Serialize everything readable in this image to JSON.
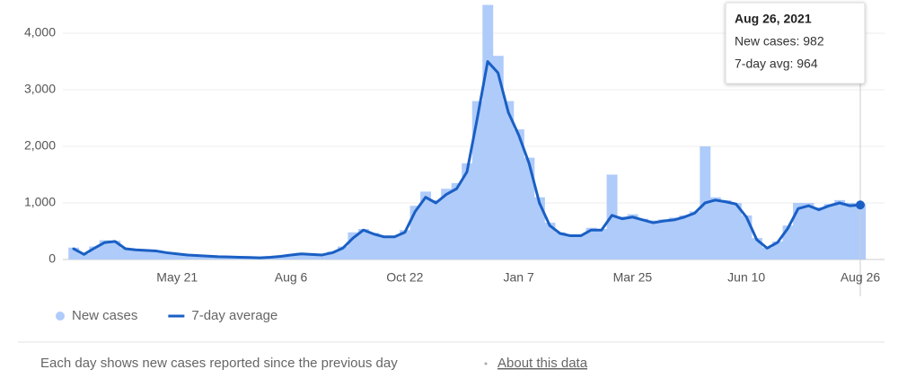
{
  "chart_data": {
    "type": "bar-line",
    "categories": [
      null,
      null,
      null,
      null,
      null,
      null,
      null,
      null,
      null,
      null,
      "May 21",
      null,
      null,
      null,
      null,
      null,
      null,
      null,
      null,
      null,
      null,
      "Aug 6",
      null,
      null,
      null,
      null,
      null,
      null,
      null,
      null,
      null,
      null,
      "Oct 22",
      null,
      null,
      null,
      null,
      null,
      null,
      null,
      null,
      null,
      null,
      "Jan 7",
      null,
      null,
      null,
      null,
      null,
      null,
      null,
      null,
      null,
      null,
      "Mar 25",
      null,
      null,
      null,
      null,
      null,
      null,
      null,
      null,
      null,
      null,
      "Jun 10",
      null,
      null,
      null,
      null,
      null,
      null,
      null,
      null,
      null,
      null,
      "Aug 26"
    ],
    "series": [
      {
        "name": "New cases",
        "kind": "bar",
        "color": "#aecbfa",
        "values": [
          210,
          100,
          230,
          340,
          330,
          200,
          180,
          170,
          160,
          130,
          110,
          90,
          75,
          65,
          55,
          50,
          45,
          40,
          35,
          45,
          60,
          90,
          120,
          95,
          85,
          140,
          230,
          480,
          540,
          470,
          420,
          410,
          520,
          950,
          1200,
          1050,
          1250,
          1350,
          1700,
          2800,
          4500,
          3600,
          2800,
          2300,
          1800,
          1100,
          650,
          480,
          430,
          440,
          560,
          540,
          1500,
          760,
          800,
          720,
          690,
          710,
          740,
          780,
          850,
          2000,
          1100,
          1050,
          1000,
          780,
          380,
          210,
          320,
          600,
          1000,
          1000,
          920,
          980,
          1050,
          1000,
          982
        ]
      },
      {
        "name": "7-day average",
        "kind": "line",
        "color": "#1a5fc4",
        "values": [
          190,
          90,
          200,
          300,
          320,
          190,
          170,
          160,
          150,
          120,
          100,
          80,
          70,
          60,
          50,
          45,
          40,
          35,
          30,
          40,
          55,
          80,
          100,
          90,
          80,
          120,
          200,
          380,
          520,
          450,
          400,
          400,
          480,
          850,
          1100,
          1000,
          1150,
          1250,
          1550,
          2500,
          3500,
          3300,
          2600,
          2200,
          1700,
          1000,
          600,
          460,
          420,
          420,
          520,
          520,
          780,
          720,
          750,
          700,
          650,
          680,
          700,
          750,
          820,
          1000,
          1050,
          1020,
          980,
          750,
          350,
          200,
          300,
          550,
          900,
          950,
          880,
          950,
          1000,
          950,
          964
        ]
      }
    ],
    "ylim": [
      0,
      4500
    ],
    "yticks": [
      0,
      {
        "value": 1000,
        "label": "1,000"
      },
      {
        "value": 2000,
        "label": "2,000"
      },
      {
        "value": 3000,
        "label": "3,000"
      },
      {
        "value": 4000,
        "label": "4,000"
      }
    ],
    "grid": true,
    "tooltip": {
      "title": "Aug 26, 2021",
      "lines": [
        "New cases: 982",
        "7-day avg: 964"
      ]
    },
    "footer": {
      "note": "Each day shows new cases reported since the previous day",
      "link": "About this data"
    }
  }
}
